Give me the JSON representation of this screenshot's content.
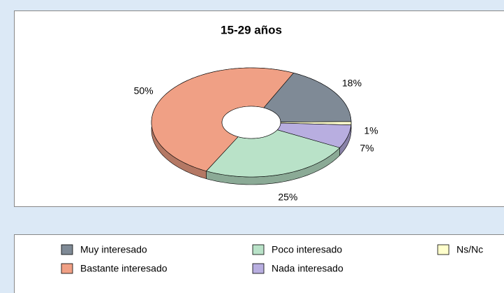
{
  "chart_data": {
    "type": "pie",
    "title": "15-29 años",
    "categories": [
      "Muy interesado",
      "Ns/Nc",
      "Nada interesado",
      "Poco interesado",
      "Bastante interesado"
    ],
    "values": [
      18,
      1,
      7,
      25,
      50
    ],
    "value_labels": [
      "18%",
      "1%",
      "7%",
      "25%",
      "50%"
    ],
    "colors": [
      "#7f8a96",
      "#ffffcc",
      "#b8aee0",
      "#b9e2c8",
      "#f0a085"
    ]
  }
}
